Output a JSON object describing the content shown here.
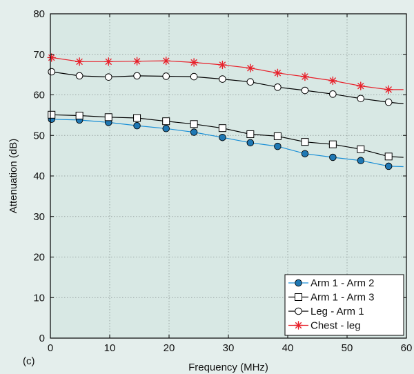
{
  "panel_label": "(c)",
  "chart_data": {
    "type": "line",
    "title": "",
    "xlabel": "Frequency (MHz)",
    "ylabel": "Attenuation (dB)",
    "xlim": [
      0,
      60
    ],
    "ylim": [
      0,
      80
    ],
    "xticks": [
      0,
      10,
      20,
      30,
      40,
      50,
      60
    ],
    "yticks": [
      0,
      10,
      20,
      30,
      40,
      50,
      60,
      70,
      80
    ],
    "grid": true,
    "legend_position": "bottom-right",
    "x": [
      0.2,
      4.9,
      9.8,
      14.6,
      19.5,
      24.2,
      29.0,
      33.7,
      38.3,
      42.9,
      47.6,
      52.3,
      57.0
    ],
    "series": [
      {
        "name": "Arm 1 - Arm 2",
        "marker": "filled-circle",
        "line_color": "#1a8fd6",
        "marker_color": "#1f78b4",
        "values": [
          54.0,
          53.8,
          53.2,
          52.4,
          51.7,
          50.8,
          49.5,
          48.2,
          47.3,
          45.5,
          44.6,
          43.8,
          42.4
        ],
        "end": [
          59.5,
          42.3
        ]
      },
      {
        "name": "Arm 1 - Arm 3",
        "marker": "open-square",
        "line_color": "#000000",
        "marker_color": "#000000",
        "values": [
          55.1,
          54.9,
          54.5,
          54.3,
          53.5,
          52.8,
          51.8,
          50.3,
          49.8,
          48.4,
          47.8,
          46.6,
          44.8
        ],
        "end": [
          59.5,
          44.6
        ]
      },
      {
        "name": "Leg - Arm 1",
        "marker": "open-circle",
        "line_color": "#000000",
        "marker_color": "#000000",
        "values": [
          65.7,
          64.7,
          64.4,
          64.7,
          64.6,
          64.5,
          63.9,
          63.2,
          61.9,
          61.1,
          60.2,
          59.1,
          58.2
        ],
        "end": [
          59.5,
          57.8
        ]
      },
      {
        "name": "Chest - leg",
        "marker": "asterisk",
        "line_color": "#e8202a",
        "marker_color": "#e8202a",
        "values": [
          69.2,
          68.2,
          68.2,
          68.3,
          68.4,
          68.0,
          67.4,
          66.6,
          65.4,
          64.5,
          63.5,
          62.2,
          61.3
        ],
        "end": [
          59.5,
          61.3
        ]
      }
    ]
  }
}
